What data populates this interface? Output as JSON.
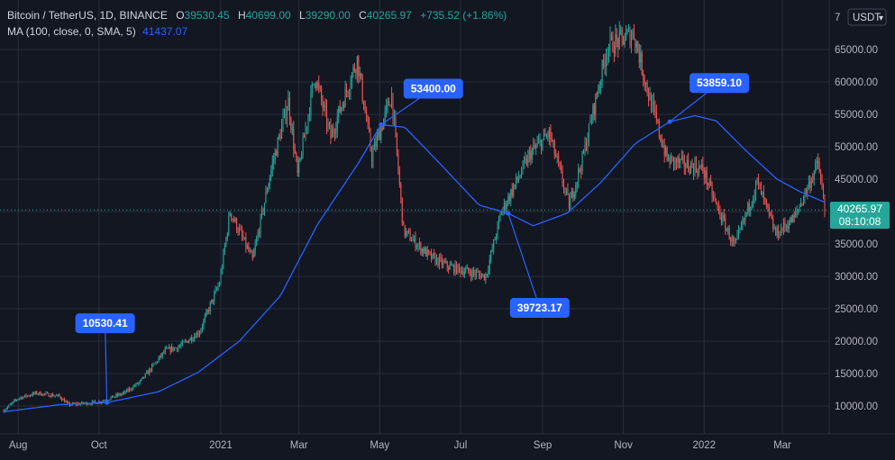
{
  "header": {
    "symbol": "Bitcoin / TetherUS, 1D, BINANCE",
    "o_label": "O",
    "o_value": "39530.45",
    "h_label": "H",
    "h_value": "40699.00",
    "l_label": "L",
    "l_value": "39290.00",
    "c_label": "C",
    "c_value": "40265.97",
    "change": "+735.52 (+1.86%)",
    "ma_label": "MA (100, close, 0, SMA, 5)",
    "ma_value": "41437.07"
  },
  "toolbar": {
    "currency": "USDT",
    "currency_arrow": "▾"
  },
  "colors": {
    "background": "#131722",
    "up": "#26a69a",
    "down": "#ef5350",
    "ma": "#2962ff",
    "grid": "#2a2e39",
    "callout": "#2962ff",
    "price_tag": "#26a69a"
  },
  "price_axis": {
    "ticks": [
      "10000.00",
      "15000.00",
      "20000.00",
      "25000.00",
      "30000.00",
      "35000.00",
      "40000.00",
      "45000.00",
      "50000.00",
      "55000.00",
      "60000.00",
      "65000.00"
    ],
    "top_label": "7"
  },
  "current_price": {
    "value": "40265.97",
    "countdown": "08:10:08"
  },
  "callouts": [
    {
      "label": "10530.41",
      "value": 10530.41,
      "date": "2020-10-07"
    },
    {
      "label": "53400.00",
      "value": 53400.0,
      "date": "2021-05-02"
    },
    {
      "label": "39723.17",
      "value": 39723.17,
      "date": "2021-08-06"
    },
    {
      "label": "53859.10",
      "value": 53859.1,
      "date": "2021-12-06"
    }
  ],
  "chart_data": {
    "type": "candlestick",
    "title": "Bitcoin / TetherUS, 1D, BINANCE",
    "x_range": [
      "2020-07-21",
      "2022-04-02"
    ],
    "y_range": [
      8000,
      70000
    ],
    "x_ticks": [
      "Aug",
      "Oct",
      "2021",
      "Mar",
      "May",
      "Jul",
      "Sep",
      "Nov",
      "2022",
      "Mar"
    ],
    "x_tick_dates": [
      "2020-08-01",
      "2020-10-01",
      "2021-01-01",
      "2021-03-01",
      "2021-05-01",
      "2021-07-01",
      "2021-09-01",
      "2021-11-01",
      "2022-01-01",
      "2022-03-01"
    ],
    "grid": true,
    "price_anchors": [
      [
        "2020-07-21",
        9300
      ],
      [
        "2020-08-01",
        11200
      ],
      [
        "2020-08-15",
        12000
      ],
      [
        "2020-09-01",
        11500
      ],
      [
        "2020-09-08",
        10200
      ],
      [
        "2020-10-01",
        10600
      ],
      [
        "2020-10-20",
        12000
      ],
      [
        "2020-11-01",
        13700
      ],
      [
        "2020-11-20",
        18500
      ],
      [
        "2020-12-01",
        19200
      ],
      [
        "2020-12-16",
        21500
      ],
      [
        "2020-12-31",
        29000
      ],
      [
        "2021-01-08",
        40000
      ],
      [
        "2021-01-25",
        32500
      ],
      [
        "2021-02-08",
        46500
      ],
      [
        "2021-02-21",
        57000
      ],
      [
        "2021-02-28",
        45500
      ],
      [
        "2021-03-13",
        61000
      ],
      [
        "2021-03-25",
        51500
      ],
      [
        "2021-04-14",
        63500
      ],
      [
        "2021-04-25",
        48500
      ],
      [
        "2021-05-10",
        58000
      ],
      [
        "2021-05-19",
        37000
      ],
      [
        "2021-06-08",
        33000
      ],
      [
        "2021-06-22",
        31500
      ],
      [
        "2021-07-20",
        30000
      ],
      [
        "2021-08-01",
        40000
      ],
      [
        "2021-08-23",
        49000
      ],
      [
        "2021-09-06",
        52000
      ],
      [
        "2021-09-21",
        41000
      ],
      [
        "2021-10-01",
        48000
      ],
      [
        "2021-10-20",
        65500
      ],
      [
        "2021-11-09",
        67500
      ],
      [
        "2021-11-20",
        58000
      ],
      [
        "2021-12-04",
        48000
      ],
      [
        "2021-12-31",
        46500
      ],
      [
        "2022-01-10",
        41000
      ],
      [
        "2022-01-24",
        34500
      ],
      [
        "2022-02-10",
        44500
      ],
      [
        "2022-02-24",
        36500
      ],
      [
        "2022-03-10",
        39000
      ],
      [
        "2022-03-28",
        47500
      ],
      [
        "2022-04-02",
        40266
      ]
    ],
    "ma_anchors": [
      [
        "2020-07-21",
        9100
      ],
      [
        "2020-09-01",
        10200
      ],
      [
        "2020-10-07",
        10530
      ],
      [
        "2020-11-15",
        12200
      ],
      [
        "2020-12-15",
        15200
      ],
      [
        "2021-01-15",
        20000
      ],
      [
        "2021-02-15",
        27000
      ],
      [
        "2021-03-15",
        38000
      ],
      [
        "2021-04-15",
        47500
      ],
      [
        "2021-05-02",
        53400
      ],
      [
        "2021-05-20",
        53000
      ],
      [
        "2021-06-15",
        47500
      ],
      [
        "2021-07-15",
        41000
      ],
      [
        "2021-08-06",
        39723
      ],
      [
        "2021-08-25",
        37800
      ],
      [
        "2021-09-20",
        39800
      ],
      [
        "2021-10-15",
        44500
      ],
      [
        "2021-11-10",
        50500
      ],
      [
        "2021-12-06",
        53859
      ],
      [
        "2021-12-25",
        54800
      ],
      [
        "2022-01-10",
        54000
      ],
      [
        "2022-02-01",
        49500
      ],
      [
        "2022-02-25",
        45000
      ],
      [
        "2022-03-15",
        43000
      ],
      [
        "2022-04-02",
        41437
      ]
    ],
    "ma_period": 100
  }
}
